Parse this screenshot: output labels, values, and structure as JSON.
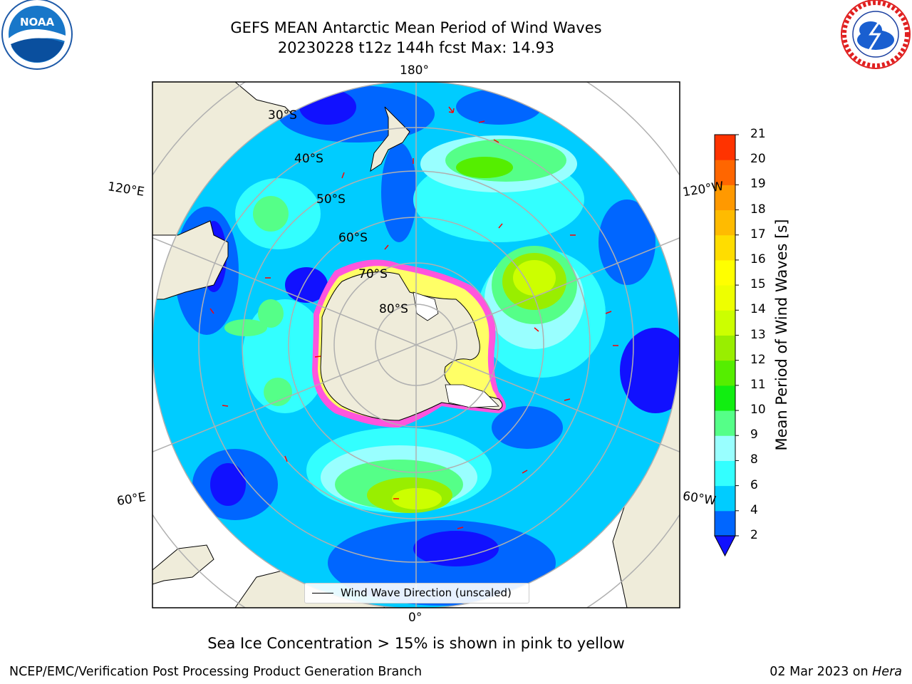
{
  "header": {
    "title_line1": "GEFS MEAN Antarctic Mean Period of Wind Waves",
    "title_line2": "20230228 t12z 144h fcst   Max: 14.93"
  },
  "logos": {
    "left": "noaa-logo",
    "right": "national-weather-service-logo"
  },
  "map": {
    "longitude_labels": {
      "top": "180°",
      "bottom": "0°",
      "upper_left": "120°E",
      "upper_right": "120°W",
      "lower_left": "60°E",
      "lower_right": "60°W"
    },
    "latitude_labels": [
      "30°S",
      "40°S",
      "50°S",
      "60°S",
      "70°S",
      "80°S"
    ],
    "legend_label": "Wind Wave Direction (unscaled)"
  },
  "colorbar": {
    "title": "Mean Period of Wind Waves [s]",
    "ticks": [
      "2",
      "4",
      "6",
      "8",
      "9",
      "10",
      "11",
      "12",
      "13",
      "14",
      "15",
      "16",
      "17",
      "18",
      "19",
      "20",
      "21"
    ],
    "colors": [
      "#0066ff",
      "#00ccff",
      "#33ffff",
      "#99ffff",
      "#55ff88",
      "#11ee11",
      "#55ee00",
      "#99ee00",
      "#ccff00",
      "#eeff00",
      "#ffff00",
      "#ffdd00",
      "#ffbb00",
      "#ff9900",
      "#ff6600",
      "#ff3300"
    ],
    "extend_color": "#1111ff"
  },
  "notes": {
    "sea_ice": "Sea Ice Concentration > 15% is shown in pink to yellow"
  },
  "footer": {
    "left": "NCEP/EMC/Verification Post Processing Product Generation Branch",
    "right_date": "02 Mar 2023 on ",
    "right_host": "Hera"
  }
}
